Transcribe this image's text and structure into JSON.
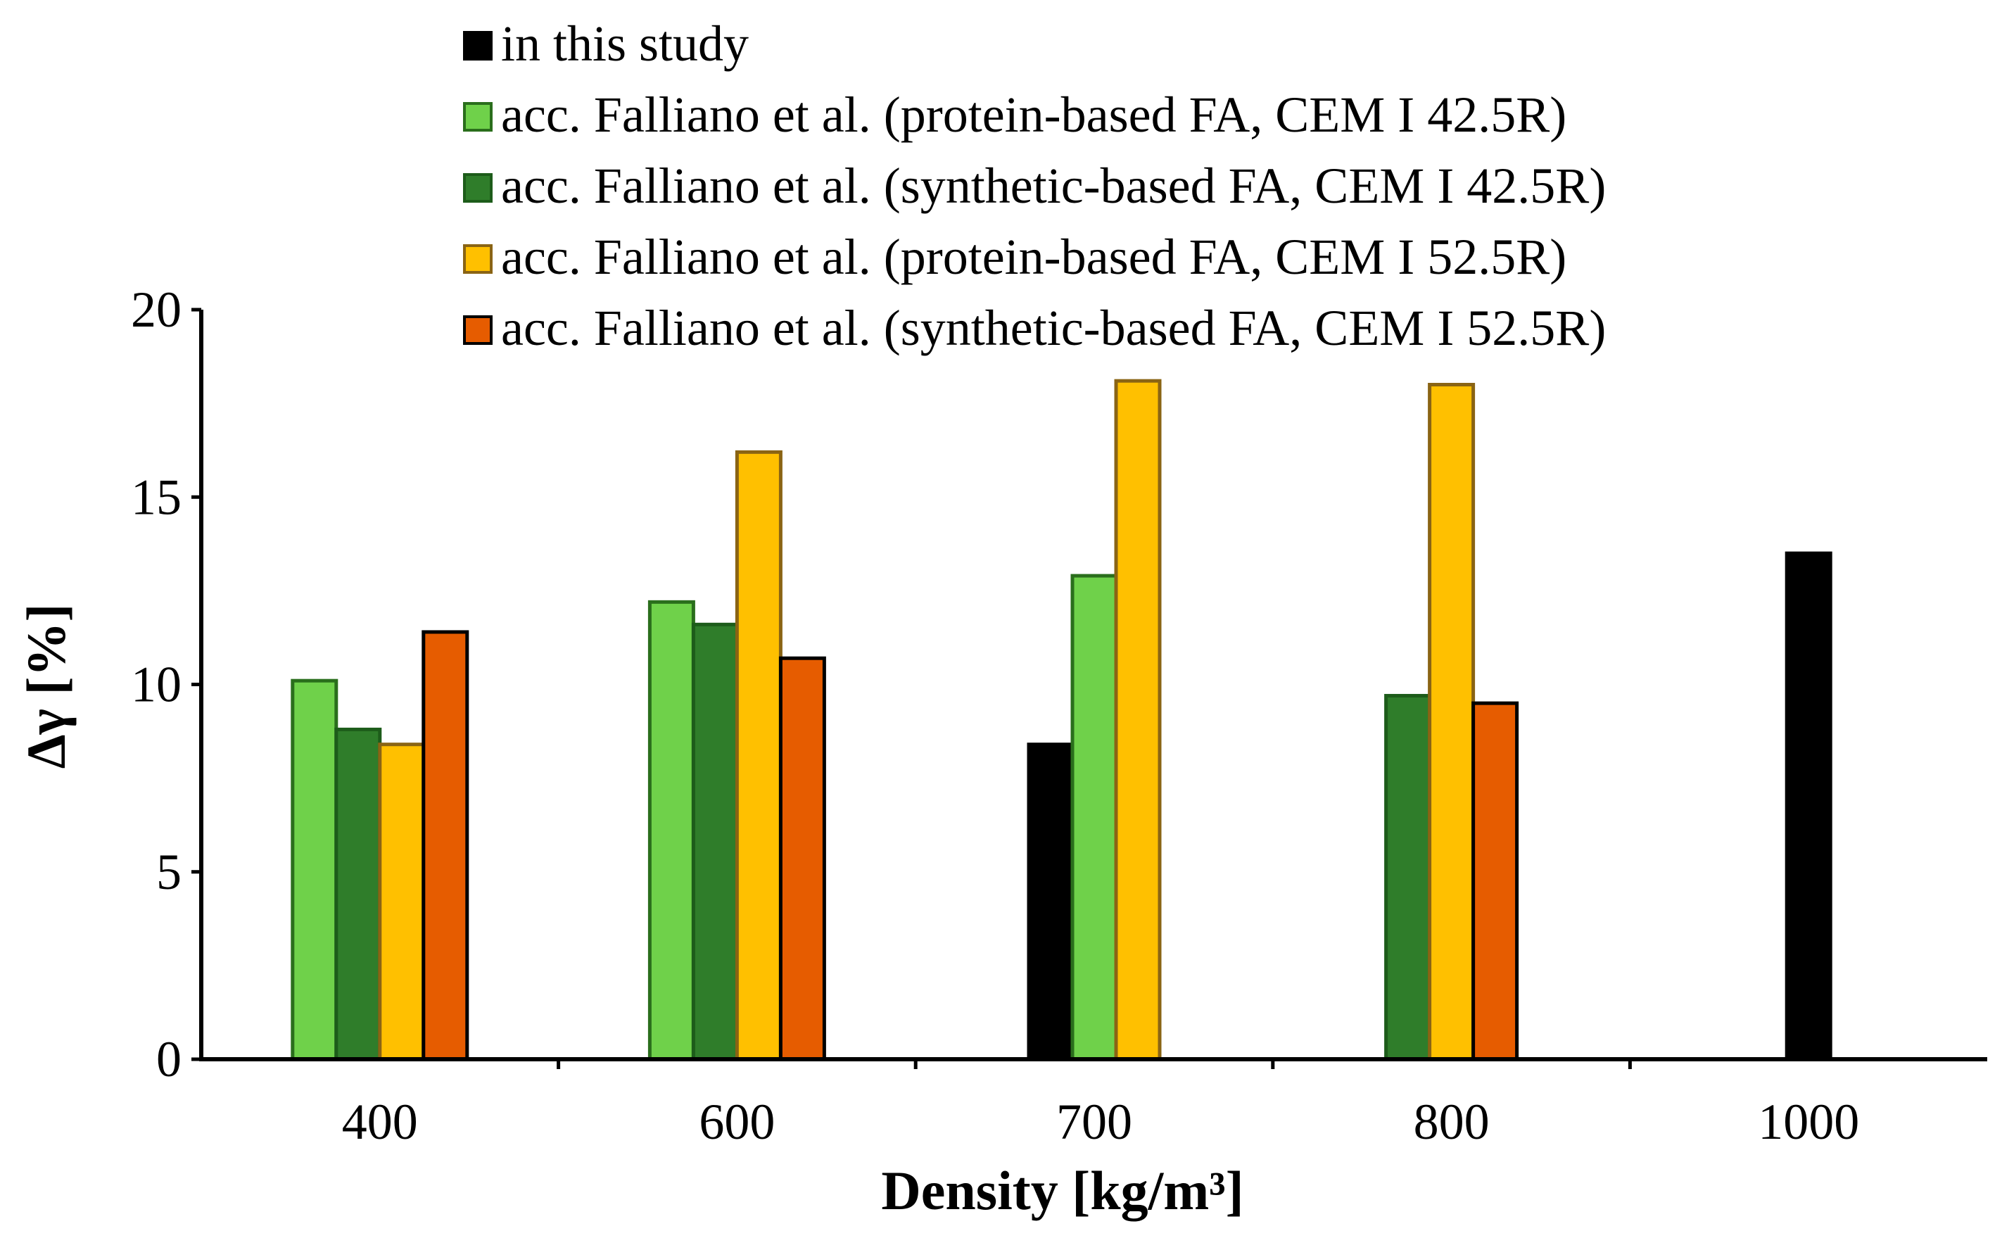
{
  "chart_data": {
    "type": "bar",
    "title": "",
    "xlabel": "Density [kg/m³]",
    "ylabel": "Δγ [%]",
    "ylim": [
      0,
      20
    ],
    "yticks": [
      "0",
      "5",
      "10",
      "15",
      "20"
    ],
    "categories": [
      "400",
      "600",
      "700",
      "800",
      "1000"
    ],
    "legend_position": "top",
    "series": [
      {
        "name": "in this study",
        "color": "#000000",
        "values": [
          null,
          null,
          8.4,
          null,
          13.5
        ]
      },
      {
        "name": "acc. Falliano et al. (protein-based FA, CEM I 42.5R)",
        "color": "#6fd14a",
        "values": [
          10.1,
          12.2,
          12.9,
          null,
          null
        ]
      },
      {
        "name": "acc. Falliano et al. (synthetic-based FA, CEM I 42.5R)",
        "color": "#2f7d2a",
        "values": [
          8.8,
          11.6,
          null,
          9.7,
          null
        ]
      },
      {
        "name": "acc. Falliano et al. (protein-based FA, CEM I 52.5R)",
        "color": "#ffc000",
        "values": [
          8.4,
          16.2,
          18.1,
          18.0,
          null
        ]
      },
      {
        "name": "acc. Falliano et al. (synthetic-based FA, CEM I 52.5R)",
        "color": "#e65c00",
        "values": [
          11.4,
          10.7,
          null,
          9.5,
          null
        ]
      }
    ]
  }
}
